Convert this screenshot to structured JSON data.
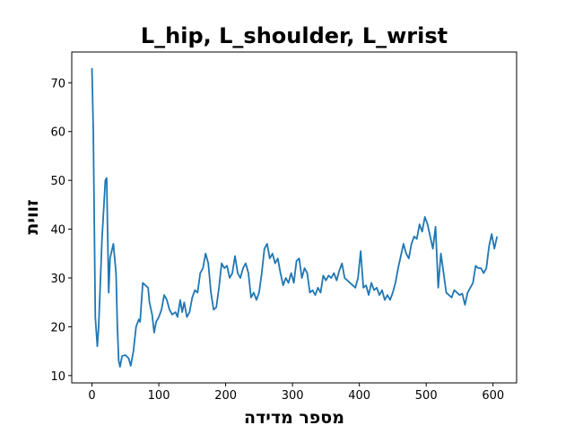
{
  "chart_data": {
    "type": "line",
    "title": "L_hip, L_shoulder, L_wrist",
    "x_label": "מספר מדידה",
    "y_label": "זווית",
    "x": [
      0,
      2,
      5,
      8,
      10,
      15,
      20,
      22,
      25,
      27,
      32,
      36,
      38,
      40,
      42,
      45,
      50,
      55,
      58,
      62,
      66,
      70,
      72,
      76,
      80,
      84,
      86,
      90,
      93,
      96,
      100,
      104,
      108,
      112,
      116,
      120,
      125,
      128,
      132,
      135,
      138,
      142,
      146,
      150,
      154,
      158,
      162,
      166,
      170,
      174,
      178,
      182,
      186,
      190,
      194,
      198,
      202,
      206,
      210,
      214,
      218,
      222,
      226,
      230,
      234,
      238,
      242,
      246,
      250,
      254,
      258,
      262,
      266,
      270,
      274,
      278,
      282,
      286,
      290,
      294,
      298,
      302,
      306,
      310,
      314,
      318,
      322,
      326,
      330,
      334,
      338,
      342,
      346,
      350,
      354,
      358,
      362,
      366,
      370,
      374,
      378,
      382,
      386,
      390,
      394,
      398,
      402,
      406,
      410,
      414,
      418,
      422,
      426,
      430,
      434,
      438,
      442,
      446,
      450,
      454,
      458,
      462,
      466,
      470,
      474,
      478,
      482,
      486,
      490,
      494,
      498,
      502,
      506,
      510,
      514,
      518,
      522,
      526,
      530,
      534,
      538,
      542,
      546,
      550,
      554,
      558,
      562,
      566,
      570,
      574,
      578,
      582,
      586,
      590,
      594,
      598,
      602,
      606
    ],
    "values": [
      73,
      60,
      22,
      16,
      20,
      38,
      50,
      50.5,
      27,
      34,
      37,
      31,
      20,
      13,
      11.8,
      14,
      14.2,
      13.5,
      12,
      15,
      20,
      21.5,
      21,
      29,
      28.5,
      28,
      25,
      22.5,
      18.8,
      21,
      22,
      23.5,
      26.5,
      25.5,
      23.5,
      22.5,
      23,
      22,
      25.5,
      23,
      25,
      22,
      23,
      26,
      27.5,
      27,
      31,
      32,
      35,
      33,
      27,
      23.5,
      24,
      28,
      33,
      32,
      32.5,
      30,
      31,
      34.5,
      31,
      30,
      32,
      33,
      31,
      26,
      27,
      25.5,
      27,
      31,
      36,
      37,
      34,
      35,
      33,
      34,
      31,
      28.5,
      30,
      29,
      31,
      29,
      33.5,
      34,
      30,
      32,
      31,
      27,
      27.5,
      26.5,
      28,
      27,
      30.5,
      29.5,
      30.5,
      30,
      31,
      29.5,
      31.5,
      33,
      30,
      29.5,
      29,
      28.5,
      28,
      30,
      35.5,
      28,
      28.5,
      26.5,
      29,
      27.5,
      28,
      26.5,
      27.5,
      25.5,
      26.5,
      25.5,
      27,
      29,
      32,
      34.5,
      37,
      35,
      34,
      37,
      38.5,
      38,
      41,
      39.5,
      42.5,
      41,
      38.5,
      36,
      40.5,
      28,
      35,
      31,
      27,
      26.5,
      26,
      27.5,
      27,
      26.5,
      26.8,
      24.5,
      27,
      28,
      29,
      32.5,
      32,
      32,
      31,
      32,
      36.5,
      39,
      36,
      38.5
    ],
    "color": "#1f77b4",
    "xlim": [
      -30.25,
      635.25
    ],
    "ylim": [
      8.5,
      76.3
    ],
    "xticks": [
      0,
      100,
      200,
      300,
      400,
      500,
      600
    ],
    "yticks": [
      10,
      20,
      30,
      40,
      50,
      60,
      70
    ]
  }
}
